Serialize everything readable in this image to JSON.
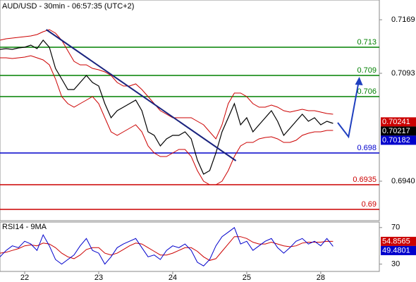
{
  "chart_data": [
    {
      "type": "line",
      "title": "AUD/USD - 30min - 06:57:35 (UTC+2)",
      "x": [
        0,
        4,
        8,
        12,
        16,
        20,
        24,
        28,
        32,
        36,
        40,
        44,
        48,
        52,
        56,
        60,
        64,
        68,
        72,
        76,
        80,
        84,
        88,
        92,
        96,
        100,
        104,
        108,
        112,
        116,
        120,
        124,
        128,
        132,
        136,
        140,
        144,
        148,
        152,
        156,
        160,
        164,
        168,
        172,
        176,
        180,
        184,
        188,
        192,
        196,
        200,
        204,
        208,
        212,
        216
      ],
      "xlim": [
        0,
        246
      ],
      "ylim": [
        0.6884,
        0.7197
      ],
      "yticks": [
        0.7169,
        0.7093,
        {
          "value": 0.694,
          "label": "0.6940"
        }
      ],
      "close": {
        "color": "#000000",
        "values": [
          0.7127,
          0.7128,
          0.7127,
          0.7129,
          0.713,
          0.7133,
          0.7128,
          0.714,
          0.713,
          0.71,
          0.7085,
          0.707,
          0.707,
          0.708,
          0.709,
          0.708,
          0.7075,
          0.705,
          0.703,
          0.704,
          0.7045,
          0.705,
          0.7055,
          0.704,
          0.701,
          0.7005,
          0.699,
          0.7,
          0.7005,
          0.7005,
          0.701,
          0.7,
          0.697,
          0.695,
          0.6955,
          0.698,
          0.701,
          0.703,
          0.705,
          0.702,
          0.703,
          0.701,
          0.702,
          0.703,
          0.704,
          0.7025,
          0.7005,
          0.7015,
          0.7025,
          0.7035,
          0.7025,
          0.703,
          0.702,
          0.7025,
          0.7022
        ]
      },
      "upper_band": {
        "color": "#cc0000",
        "values": [
          0.714,
          0.7142,
          0.7143,
          0.7144,
          0.7145,
          0.7146,
          0.7148,
          0.7152,
          0.7155,
          0.715,
          0.714,
          0.7125,
          0.711,
          0.7105,
          0.7105,
          0.71,
          0.7098,
          0.7095,
          0.709,
          0.708,
          0.7075,
          0.7075,
          0.7078,
          0.707,
          0.706,
          0.705,
          0.704,
          0.7035,
          0.703,
          0.703,
          0.703,
          0.703,
          0.7025,
          0.702,
          0.701,
          0.7,
          0.702,
          0.705,
          0.7065,
          0.7065,
          0.706,
          0.705,
          0.7045,
          0.7045,
          0.7048,
          0.7045,
          0.704,
          0.7038,
          0.704,
          0.7042,
          0.704,
          0.704,
          0.7038,
          0.7036,
          0.7035
        ]
      },
      "lower_band": {
        "color": "#cc0000",
        "values": [
          0.7115,
          0.7115,
          0.7114,
          0.7115,
          0.7116,
          0.7118,
          0.7115,
          0.7112,
          0.7105,
          0.7085,
          0.706,
          0.705,
          0.7045,
          0.705,
          0.7055,
          0.706,
          0.705,
          0.703,
          0.701,
          0.7005,
          0.701,
          0.7015,
          0.702,
          0.701,
          0.699,
          0.698,
          0.6975,
          0.6975,
          0.698,
          0.6985,
          0.6985,
          0.6975,
          0.6955,
          0.694,
          0.6935,
          0.6935,
          0.694,
          0.6955,
          0.6975,
          0.699,
          0.6995,
          0.6995,
          0.7,
          0.7002,
          0.7003,
          0.7,
          0.6995,
          0.6995,
          0.6998,
          0.7005,
          0.7008,
          0.701,
          0.701,
          0.7012,
          0.7012
        ]
      },
      "trendline": {
        "color": "#1a237e",
        "x": [
          30,
          153
        ],
        "values": [
          0.7155,
          0.6969
        ]
      },
      "forecast": {
        "color": "#1f3fbf",
        "x": [
          219,
          226,
          233
        ],
        "values": [
          0.7023,
          0.7003,
          0.7086
        ]
      },
      "levels": [
        {
          "value": 0.713,
          "color": "#008000"
        },
        {
          "value": 0.709,
          "color": "#008000"
        },
        {
          "value": 0.706,
          "color": "#008000"
        },
        {
          "value": 0.698,
          "color": "#0000cc"
        },
        {
          "value": 0.6935,
          "color": "#cc0000"
        },
        {
          "value": 0.69,
          "color": "#cc0000"
        }
      ],
      "price_tags": [
        {
          "value": 0.70241,
          "color": "#cc0000"
        },
        {
          "value": 0.70217,
          "color": "#000000"
        },
        {
          "value": 0.70182,
          "color": "#0000cc"
        }
      ]
    },
    {
      "type": "line",
      "title": "RSI14 - 9MA",
      "x": [
        0,
        4,
        8,
        12,
        16,
        20,
        24,
        28,
        32,
        36,
        40,
        44,
        48,
        52,
        56,
        60,
        64,
        68,
        72,
        76,
        80,
        84,
        88,
        92,
        96,
        100,
        104,
        108,
        112,
        116,
        120,
        124,
        128,
        132,
        136,
        140,
        144,
        148,
        152,
        156,
        160,
        164,
        168,
        172,
        176,
        180,
        184,
        188,
        192,
        196,
        200,
        204,
        208,
        212,
        216
      ],
      "xlim": [
        0,
        246
      ],
      "xticks": [
        {
          "value": 16,
          "label": "22"
        },
        {
          "value": 64,
          "label": "23"
        },
        {
          "value": 112,
          "label": "24"
        },
        {
          "value": 160,
          "label": "25"
        },
        {
          "value": 208,
          "label": "28"
        }
      ],
      "ylim": [
        22,
        76
      ],
      "yticks": [
        70,
        30
      ],
      "rsi": {
        "color": "#0000cc",
        "values": [
          38,
          45,
          50,
          48,
          55,
          52,
          45,
          62,
          50,
          35,
          30,
          35,
          40,
          50,
          58,
          45,
          42,
          30,
          38,
          48,
          52,
          55,
          58,
          48,
          38,
          40,
          35,
          45,
          50,
          48,
          52,
          45,
          32,
          28,
          35,
          50,
          60,
          65,
          70,
          52,
          55,
          45,
          50,
          55,
          58,
          48,
          42,
          48,
          55,
          58,
          52,
          55,
          50,
          58,
          49.4801
        ]
      },
      "ma": {
        "color": "#cc0000",
        "values": [
          42,
          43,
          45,
          47,
          50,
          51,
          50,
          53,
          52,
          48,
          42,
          38,
          36,
          40,
          46,
          48,
          48,
          42,
          40,
          42,
          46,
          50,
          53,
          52,
          48,
          44,
          40,
          40,
          42,
          45,
          48,
          48,
          44,
          38,
          34,
          36,
          44,
          52,
          60,
          60,
          58,
          54,
          52,
          52,
          54,
          52,
          50,
          49,
          50,
          53,
          54,
          54,
          54,
          55,
          54.8565
        ]
      },
      "price_tags": [
        {
          "value": 54.8565,
          "color": "#cc0000"
        },
        {
          "value": 49.4801,
          "color": "#0000cc"
        }
      ]
    }
  ]
}
